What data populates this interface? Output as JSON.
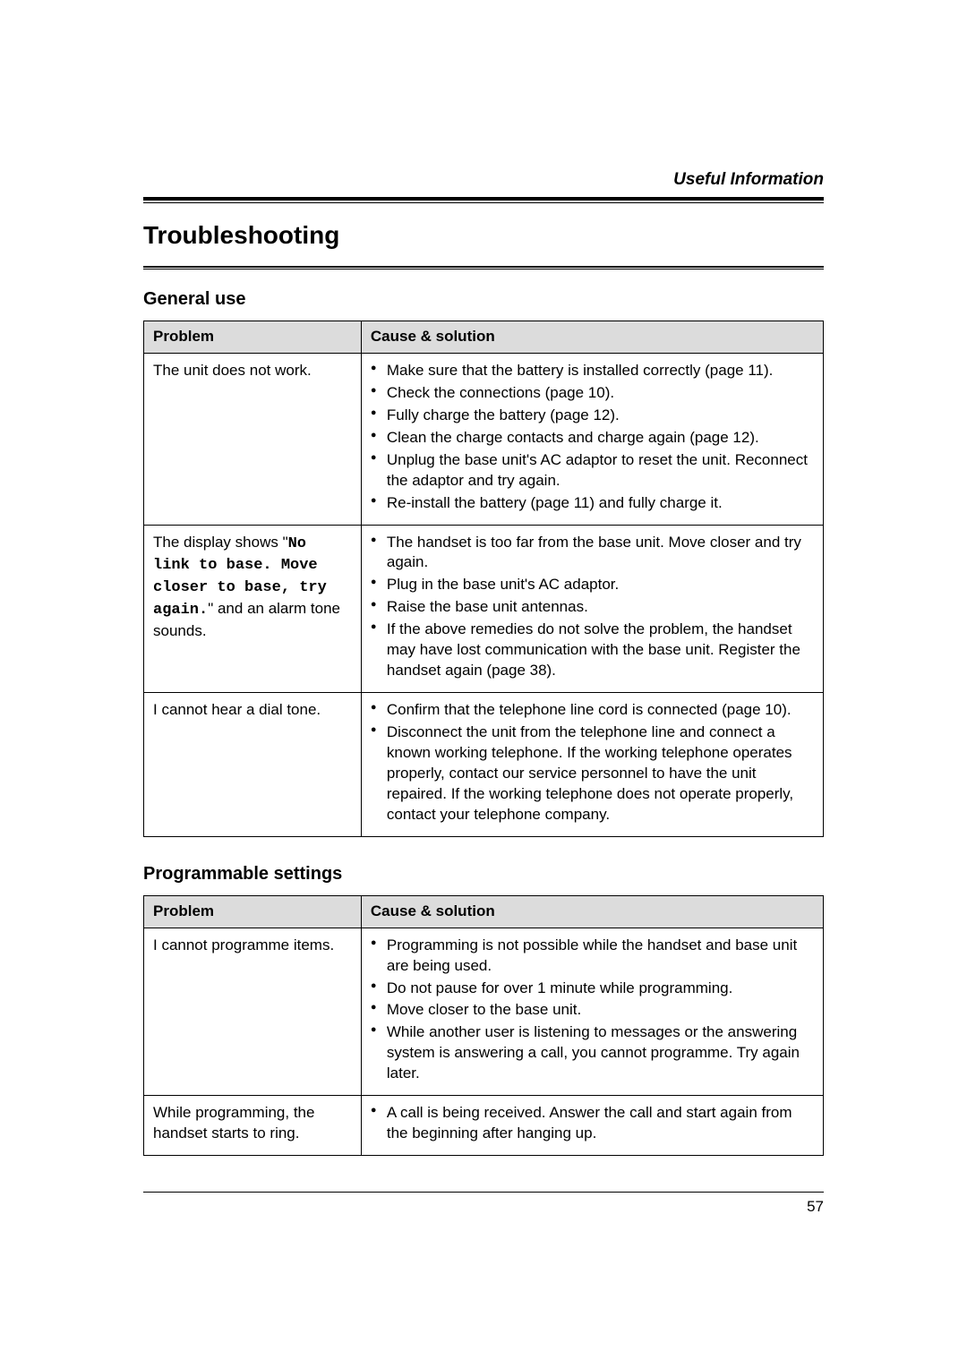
{
  "header": {
    "section": "Useful Information"
  },
  "title": "Troubleshooting",
  "table1": {
    "heading": "General use",
    "col_problem": "Problem",
    "col_cause": "Cause & solution",
    "rows": [
      {
        "problem_plain": "The unit does not work.",
        "causes": [
          "Make sure that the battery is installed correctly (page 11).",
          "Check the connections (page 10).",
          "Fully charge the battery (page 12).",
          "Clean the charge contacts and charge again (page 12).",
          "Unplug the base unit's AC adaptor to reset the unit. Reconnect the adaptor and try again.",
          "Re-install the battery (page 11) and fully charge it."
        ]
      },
      {
        "problem_pre": "The display shows \"",
        "problem_mono": "No link to base. Move closer to base, try again.",
        "problem_post": "\" and an alarm tone sounds.",
        "causes": [
          "The handset is too far from the base unit. Move closer and try again.",
          "Plug in the base unit's AC adaptor.",
          "Raise the base unit antennas.",
          "If the above remedies do not solve the problem, the handset may have lost communication with the base unit. Register the handset again (page 38)."
        ]
      },
      {
        "problem_plain": "I cannot hear a dial tone.",
        "causes": [
          "Confirm that the telephone line cord is connected (page 10).",
          "Disconnect the unit from the telephone line and connect a known working telephone. If the working telephone operates properly, contact our service personnel to have the unit repaired. If the working telephone does not operate properly, contact your telephone company."
        ]
      }
    ]
  },
  "table2": {
    "heading": "Programmable settings",
    "col_problem": "Problem",
    "col_cause": "Cause & solution",
    "rows": [
      {
        "problem_plain": "I cannot programme items.",
        "causes": [
          "Programming is not possible while the handset and base unit are being used.",
          "Do not pause for over 1 minute while programming.",
          "Move closer to the base unit.",
          "While another user is listening to messages or the answering system is answering a call, you cannot programme. Try again later."
        ]
      },
      {
        "problem_plain": "While programming, the handset starts to ring.",
        "causes": [
          "A call is being received. Answer the call and start again from the beginning after hanging up."
        ]
      }
    ]
  },
  "page_number": "57"
}
